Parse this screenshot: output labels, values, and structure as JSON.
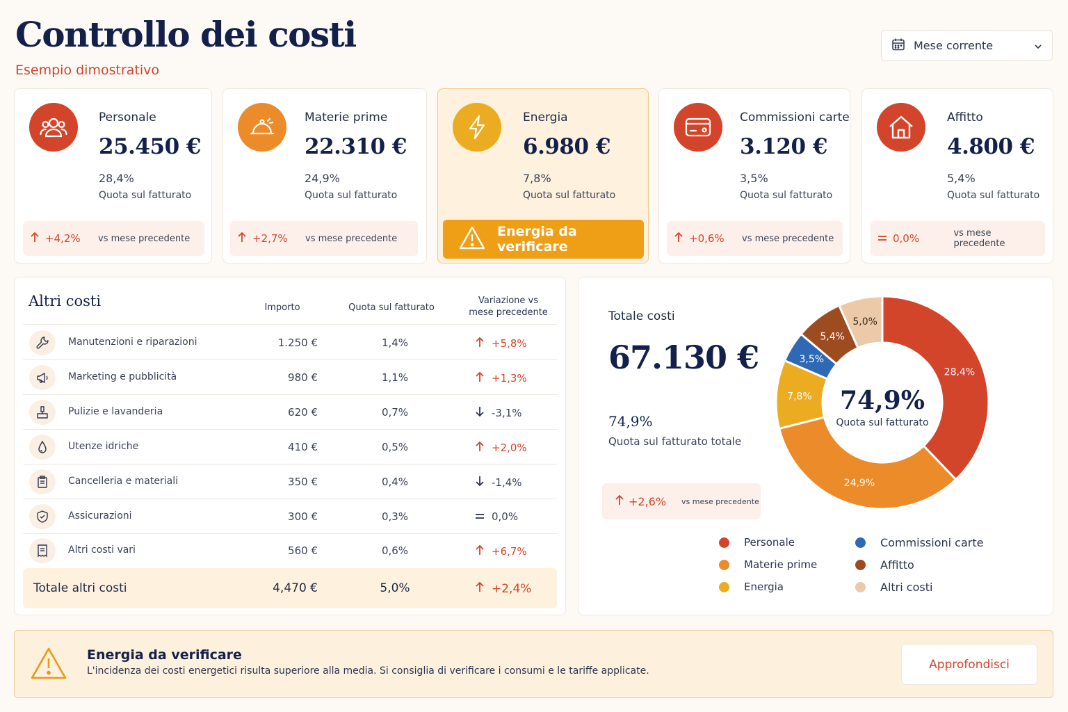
{
  "header": {
    "title": "Controllo dei costi",
    "subtitle": "Esempio dimostrativo",
    "period_select": {
      "value": "Mese corrente",
      "icon": "calendar-icon"
    }
  },
  "colors": {
    "personale": "#d2452a",
    "materie_prime": "#ec8b2a",
    "energia": "#ecac22",
    "commissioni": "#2f68b4",
    "affitto": "#9c4c1f",
    "altri_costi": "#ecc9a8",
    "accent_red": "#d2452a",
    "navy": "#13204a"
  },
  "kpis": [
    {
      "label": "Personale",
      "value": "25.450 €",
      "pct": "28,4%",
      "caption": "Quota sul fatturato",
      "delta": "+4,2%",
      "delta_dir": "up",
      "delta_text": "vs mese precedente",
      "icon": "users-icon"
    },
    {
      "label": "Materie prime",
      "value": "22.310 €",
      "pct": "24,9%",
      "caption": "Quota sul fatturato",
      "delta": "+2,7%",
      "delta_dir": "up",
      "delta_text": "vs mese precedente",
      "icon": "food-cover-icon"
    },
    {
      "label": "Energia",
      "value": "6.980 €",
      "pct": "7,8%",
      "caption": "Quota sul fatturato",
      "alert": "Energia da verificare",
      "icon": "lightning-icon"
    },
    {
      "label": "Commissioni carte",
      "value": "3.120 €",
      "pct": "3,5%",
      "caption": "Quota sul fatturato",
      "delta": "+0,6%",
      "delta_dir": "up",
      "delta_text": "vs mese precedente",
      "icon": "credit-card-icon"
    },
    {
      "label": "Affitto",
      "value": "4.800 €",
      "pct": "5,4%",
      "caption": "Quota sul fatturato",
      "delta": "0,0%",
      "delta_dir": "equal",
      "delta_text": "vs mese precedente",
      "icon": "house-icon"
    }
  ],
  "other_costs": {
    "title": "Altri costi",
    "columns": {
      "amount": "Importo",
      "share": "Quota sul fatturato",
      "variation_1": "Variazione vs",
      "variation_2": "mese precedente"
    },
    "rows": [
      {
        "name": "Manutenzioni e riparazioni",
        "amount": "1.250 €",
        "share": "1,4%",
        "variation": "+5,8%",
        "dir": "up",
        "icon": "wrench-icon"
      },
      {
        "name": "Marketing e pubblicità",
        "amount": "980 €",
        "share": "1,1%",
        "variation": "+1,3%",
        "dir": "up",
        "icon": "megaphone-icon"
      },
      {
        "name": "Pulizie e lavanderia",
        "amount": "620 €",
        "share": "0,7%",
        "variation": "-3,1%",
        "dir": "down",
        "icon": "cleaning-icon"
      },
      {
        "name": "Utenze idriche",
        "amount": "410 €",
        "share": "0,5%",
        "variation": "+2,0%",
        "dir": "up",
        "icon": "water-drop-icon"
      },
      {
        "name": "Cancelleria e materiali",
        "amount": "350 €",
        "share": "0,4%",
        "variation": "-1,4%",
        "dir": "down",
        "icon": "stationery-icon"
      },
      {
        "name": "Assicurazioni",
        "amount": "300 €",
        "share": "0,3%",
        "variation": "0,0%",
        "dir": "equal",
        "icon": "shield-icon"
      },
      {
        "name": "Altri costi vari",
        "amount": "560 €",
        "share": "0,6%",
        "variation": "+6,7%",
        "dir": "up",
        "icon": "receipt-icon"
      }
    ],
    "total": {
      "label": "Totale altri costi",
      "amount": "4,470 €",
      "share": "5,0%",
      "variation": "+2,4%"
    }
  },
  "summary": {
    "title": "Totale costi",
    "value": "67.130 €",
    "pct": "74,9%",
    "caption": "Quota sul fatturato totale",
    "delta": "+2,6%",
    "delta_text": "vs mese precedente",
    "donut_center_value": "74,9%",
    "donut_center_label": "Quota sul fatturato"
  },
  "chart_data": {
    "type": "pie",
    "donut": true,
    "categories": [
      "Personale",
      "Materie prime",
      "Energia",
      "Commissioni carte",
      "Affitto",
      "Altri costi"
    ],
    "values": [
      28.4,
      24.9,
      7.8,
      3.5,
      5.4,
      5.0
    ],
    "labels": [
      "28,4%",
      "24,9%",
      "7,8%",
      "3,5%",
      "5,4%",
      "5,0%"
    ],
    "colors": [
      "#d2452a",
      "#ec8b2a",
      "#ecac22",
      "#2f68b4",
      "#9c4c1f",
      "#ecc9a8"
    ],
    "legend": [
      "Personale",
      "Materie prime",
      "Energia",
      "Commissioni carte",
      "Affitto",
      "Altri costi"
    ]
  },
  "alert": {
    "title": "Energia da verificare",
    "text": "L'incidenza dei costi energetici risulta superiore alla media. Si consiglia di verificare i consumi e le tariffe applicate.",
    "button": "Approfondisci",
    "icon": "warning-icon"
  }
}
